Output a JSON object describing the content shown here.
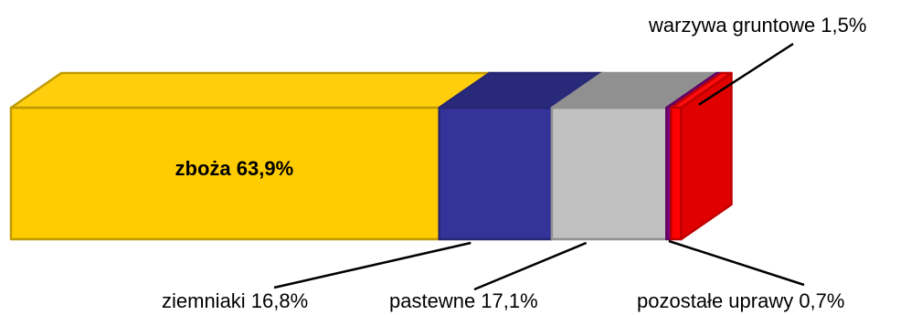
{
  "chart_data": {
    "type": "bar",
    "orientation": "horizontal-stacked-3d",
    "series": [
      {
        "name": "zboża",
        "value": 63.9,
        "label": "zboża 63,9%",
        "color": "#FFCC00"
      },
      {
        "name": "ziemniaki",
        "value": 16.8,
        "label": "ziemniaki 16,8%",
        "color": "#333399"
      },
      {
        "name": "pastewne",
        "value": 17.1,
        "label": "pastewne 17,1%",
        "color": "#C0C0C0"
      },
      {
        "name": "pozostałe uprawy",
        "value": 0.7,
        "label": "pozostałe uprawy 0,7%",
        "color": "#800080"
      },
      {
        "name": "warzywa gruntowe",
        "value": 1.5,
        "label": "warzywa gruntowe 1,5%",
        "color": "#FF0000"
      }
    ]
  }
}
